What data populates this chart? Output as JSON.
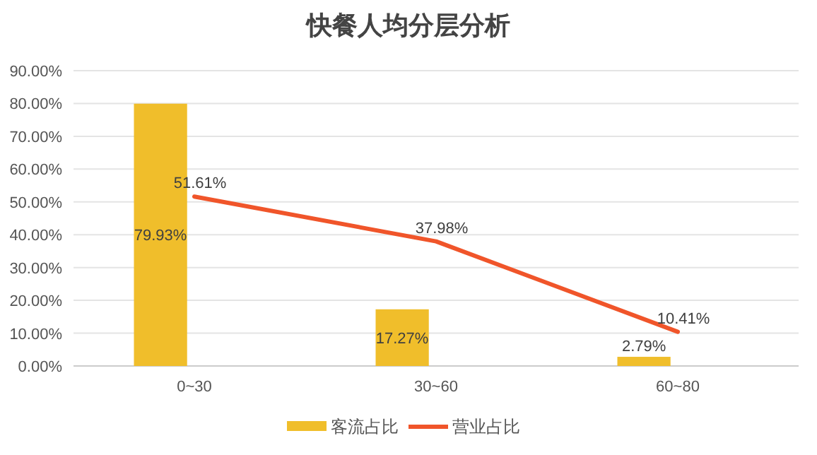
{
  "chart_data": {
    "type": "bar",
    "title": "快餐人均分层分析",
    "categories": [
      "0~30",
      "30~60",
      "60~80"
    ],
    "series": [
      {
        "name": "客流占比",
        "color": "#f0be2b",
        "values": [
          79.93,
          17.27,
          2.79
        ],
        "value_labels": [
          "79.93%",
          "17.27%",
          "2.79%"
        ]
      },
      {
        "name": "营业占比",
        "type": "line",
        "color": "#f0552a",
        "values": [
          51.61,
          37.98,
          10.41
        ],
        "value_labels": [
          "51.61%",
          "37.98%",
          "10.41%"
        ]
      }
    ],
    "ylim": [
      0,
      90
    ],
    "yticks": [
      {
        "value": 0,
        "label": "0.00%"
      },
      {
        "value": 10,
        "label": "10.00%"
      },
      {
        "value": 20,
        "label": "20.00%"
      },
      {
        "value": 30,
        "label": "30.00%"
      },
      {
        "value": 40,
        "label": "40.00%"
      },
      {
        "value": 50,
        "label": "50.00%"
      },
      {
        "value": 60,
        "label": "60.00%"
      },
      {
        "value": 70,
        "label": "70.00%"
      },
      {
        "value": 80,
        "label": "80.00%"
      },
      {
        "value": 90,
        "label": "90.00%"
      }
    ],
    "grid": "y",
    "legend": "bottom",
    "marker": "none",
    "line_style": "solid"
  }
}
